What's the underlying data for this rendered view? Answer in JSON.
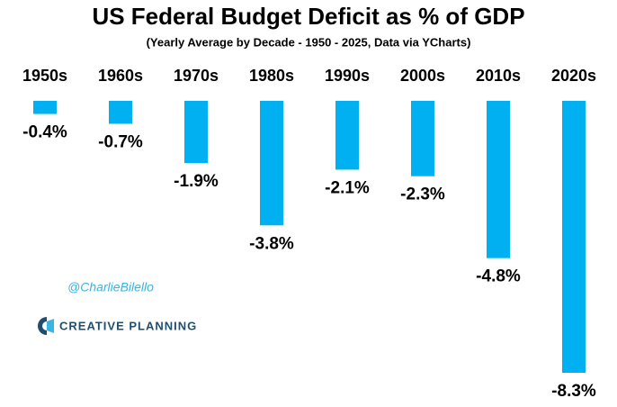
{
  "chart_data": {
    "type": "bar",
    "title": "US Federal Budget Deficit as % of GDP",
    "subtitle": "(Yearly Average by Decade - 1950 - 2025, Data via YCharts)",
    "categories": [
      "1950s",
      "1960s",
      "1970s",
      "1980s",
      "1990s",
      "2000s",
      "2010s",
      "2020s"
    ],
    "values": [
      -0.4,
      -0.7,
      -1.9,
      -3.8,
      -2.1,
      -2.3,
      -4.8,
      -8.3
    ],
    "value_labels": [
      "-0.4%",
      "-0.7%",
      "-1.9%",
      "-3.8%",
      "-2.1%",
      "-2.3%",
      "-4.8%",
      "-8.3%"
    ],
    "color": "#00b0f0",
    "annotations": [
      "@CharlieBilello",
      "CREATIVE PLANNING"
    ]
  }
}
